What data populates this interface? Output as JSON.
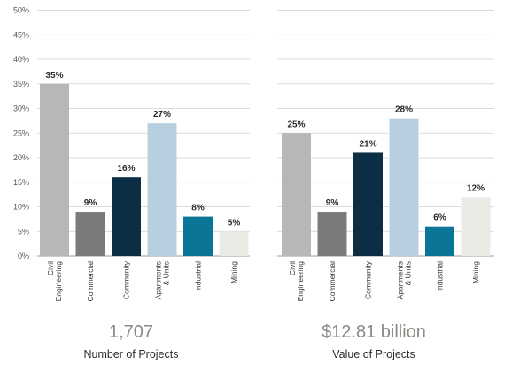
{
  "chart_data": [
    {
      "type": "bar",
      "categories": [
        "Civil\nEngineering",
        "Commercial",
        "Community",
        "Apartments\n& Units",
        "Industrial",
        "Mining"
      ],
      "values": [
        35,
        9,
        16,
        27,
        8,
        5
      ],
      "data_labels": [
        "35%",
        "9%",
        "16%",
        "27%",
        "8%",
        "5%"
      ],
      "y_ticks": [
        "0%",
        "5%",
        "10%",
        "15%",
        "20%",
        "25%",
        "30%",
        "35%",
        "40%",
        "45%",
        "50%"
      ],
      "ylim": [
        0,
        50
      ],
      "grid": true,
      "total": "1,707",
      "caption": "Number of Projects"
    },
    {
      "type": "bar",
      "categories": [
        "Civil\nEngineering",
        "Commercial",
        "Community",
        "Apartments\n& Units",
        "Industrial",
        "Mining"
      ],
      "values": [
        25,
        9,
        21,
        28,
        6,
        12
      ],
      "data_labels": [
        "25%",
        "9%",
        "21%",
        "28%",
        "6%",
        "12%"
      ],
      "ylim": [
        0,
        50
      ],
      "grid": true,
      "total": "$12.81 billion",
      "caption": "Value of Projects"
    }
  ],
  "colors": [
    "#b7b7b9",
    "#7a7b7d",
    "#0c2e45",
    "#b8cfdf",
    "#0a7597",
    "#ebeae5"
  ]
}
